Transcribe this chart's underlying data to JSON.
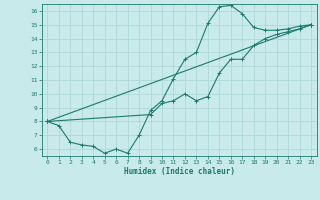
{
  "title": "",
  "xlabel": "Humidex (Indice chaleur)",
  "ylabel": "",
  "background_color": "#c8eaea",
  "grid_color": "#b0d8d8",
  "line_color": "#1a7a6e",
  "xlim": [
    -0.5,
    23.5
  ],
  "ylim": [
    5.5,
    16.5
  ],
  "yticks": [
    6,
    7,
    8,
    9,
    10,
    11,
    12,
    13,
    14,
    15,
    16
  ],
  "xticks": [
    0,
    1,
    2,
    3,
    4,
    5,
    6,
    7,
    8,
    9,
    10,
    11,
    12,
    13,
    14,
    15,
    16,
    17,
    18,
    19,
    20,
    21,
    22,
    23
  ],
  "series": [
    {
      "x": [
        0,
        1,
        2,
        3,
        4,
        5,
        6,
        7,
        8,
        9,
        10,
        11,
        12,
        13,
        14,
        15,
        16,
        17,
        18,
        19,
        20,
        21,
        22,
        23
      ],
      "y": [
        8.0,
        7.7,
        6.5,
        6.3,
        6.2,
        5.7,
        6.0,
        5.7,
        7.0,
        8.8,
        9.5,
        11.1,
        12.5,
        13.0,
        15.1,
        16.3,
        16.4,
        15.8,
        14.8,
        14.6,
        14.6,
        14.7,
        14.9,
        15.0
      ]
    },
    {
      "x": [
        0,
        9,
        10,
        11,
        12,
        13,
        14,
        15,
        16,
        17,
        18,
        19,
        20,
        21,
        22,
        23
      ],
      "y": [
        8.0,
        8.5,
        9.3,
        9.5,
        10.0,
        9.5,
        9.8,
        11.5,
        12.5,
        12.5,
        13.5,
        14.0,
        14.3,
        14.5,
        14.7,
        15.0
      ]
    },
    {
      "x": [
        0,
        23
      ],
      "y": [
        8.0,
        15.0
      ]
    }
  ]
}
